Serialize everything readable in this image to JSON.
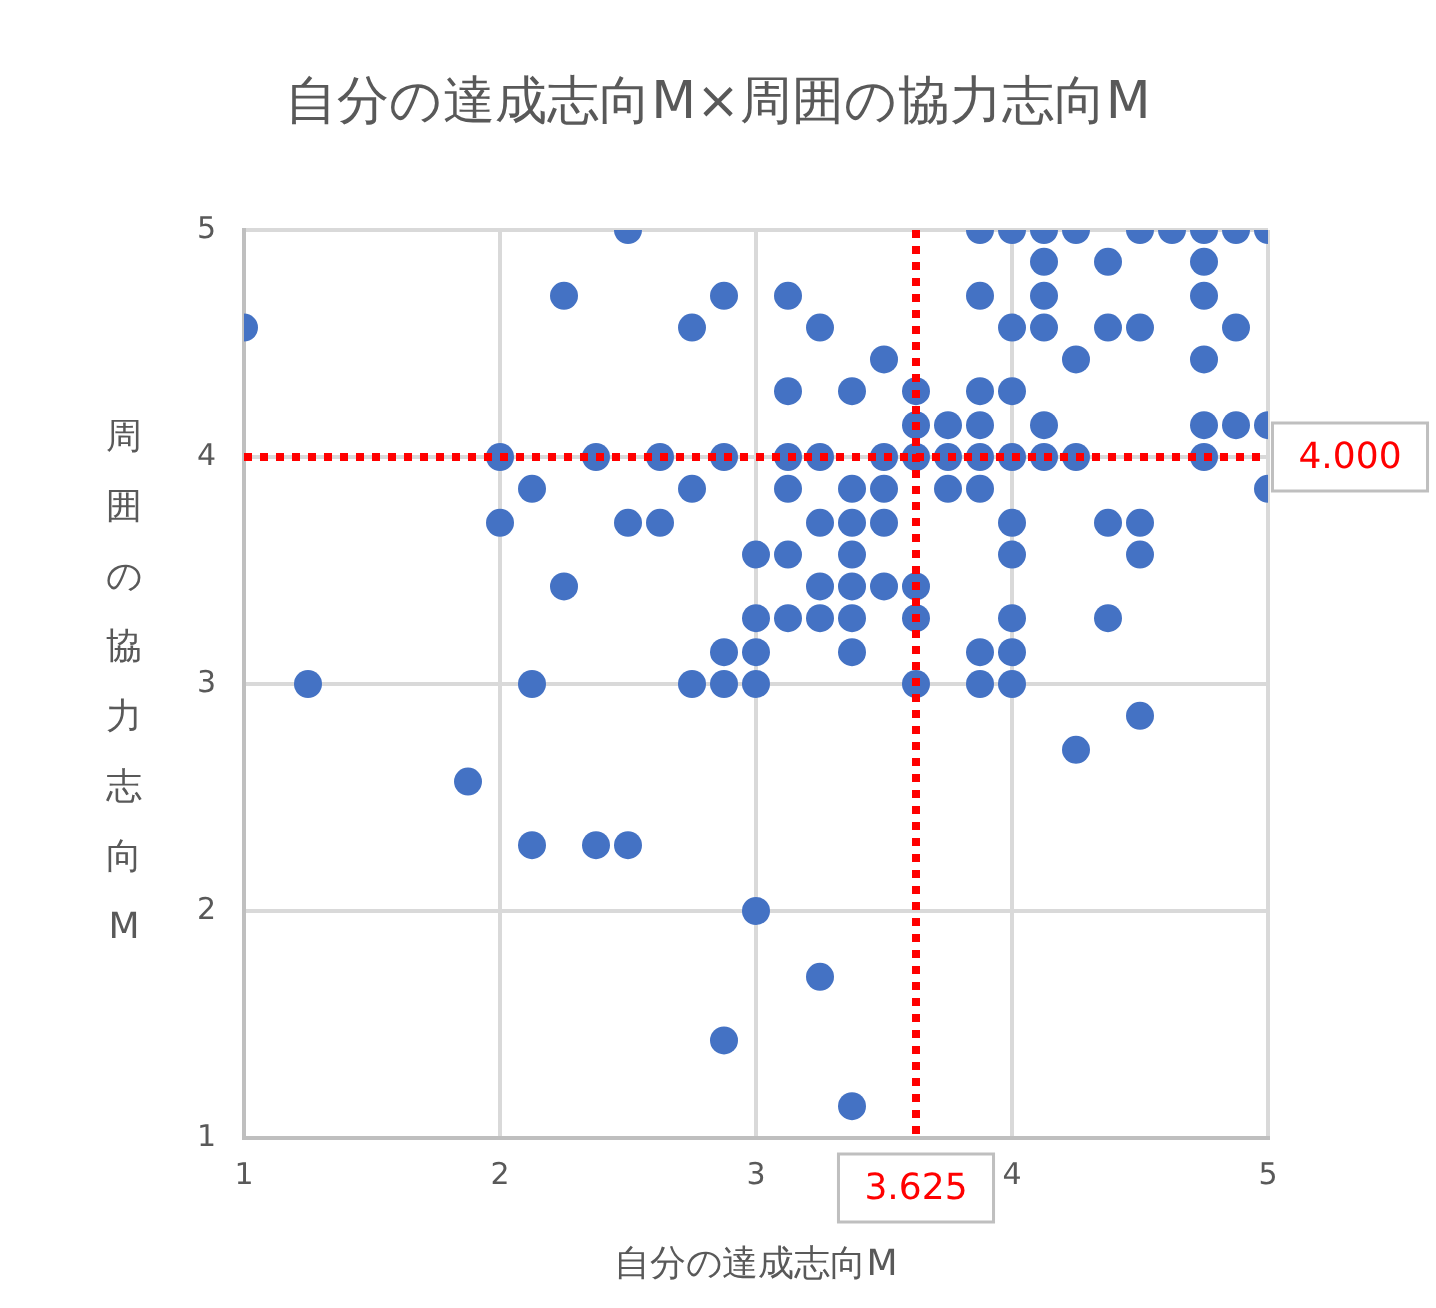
{
  "chart_data": {
    "type": "scatter",
    "title": "自分の達成志向M×周囲の協力志向M",
    "xlabel": "自分の達成志向M",
    "ylabel": "周囲の協力志向M",
    "xlim": [
      1,
      5
    ],
    "xticks": [
      1,
      2,
      3,
      4,
      5
    ],
    "ylim": [
      1,
      5
    ],
    "yticks": [
      1,
      2,
      3,
      4,
      5
    ],
    "grid": true,
    "legend": false,
    "marker": "circle",
    "series": [
      {
        "color": "#4472c4",
        "x": [
          1,
          1.25,
          1.875,
          2,
          2,
          2.125,
          2.125,
          2.125,
          2.25,
          2.25,
          2.375,
          2.375,
          2.5,
          2.5,
          2.5,
          2.625,
          2.625,
          2.75,
          2.75,
          2.75,
          2.875,
          2.875,
          2.875,
          2.875,
          2.875,
          3,
          3,
          3,
          3,
          3,
          3.25,
          3.375,
          4.25,
          4.5,
          3.875,
          4,
          4.125,
          4.25,
          4.5,
          4.625,
          4.75,
          4.875,
          5,
          4.125,
          4.375,
          4.75,
          3.125,
          3.875,
          4.125,
          4.75,
          3.25,
          4,
          4.125,
          4.375,
          4.5,
          4.875,
          3.5,
          4.25,
          4.75,
          3.125,
          3.375,
          3.625,
          3.875,
          4,
          3.625,
          3.75,
          3.875,
          4.125,
          4.75,
          4.875,
          5,
          3.125,
          3.25,
          3.5,
          3.625,
          3.75,
          3.875,
          4,
          4.125,
          4.25,
          4.75,
          3.125,
          3.375,
          3.5,
          3.75,
          3.875,
          5,
          3.25,
          3.375,
          3.5,
          4,
          4.375,
          4.5,
          3.125,
          3.375,
          4,
          4.5,
          3.25,
          3.375,
          3.5,
          3.625,
          3.125,
          3.25,
          3.375,
          3.625,
          4,
          4.375,
          3.375,
          3.875,
          4,
          3.625,
          3.875,
          4
        ],
        "values": [
          4.57,
          3,
          2.57,
          4,
          3.71,
          3.86,
          3,
          2.29,
          4.71,
          3.43,
          4,
          2.29,
          5,
          3.71,
          2.29,
          4,
          3.71,
          4.57,
          3.86,
          3,
          4.71,
          4,
          3.14,
          3,
          1.43,
          3.57,
          3.29,
          3.14,
          3,
          2,
          1.71,
          1.14,
          2.71,
          2.86,
          5,
          5,
          5,
          5,
          5,
          5,
          5,
          5,
          5,
          4.86,
          4.86,
          4.86,
          4.71,
          4.71,
          4.71,
          4.71,
          4.57,
          4.57,
          4.57,
          4.57,
          4.57,
          4.57,
          4.43,
          4.43,
          4.43,
          4.29,
          4.29,
          4.29,
          4.29,
          4.29,
          4.14,
          4.14,
          4.14,
          4.14,
          4.14,
          4.14,
          4.14,
          4,
          4,
          4,
          4,
          4,
          4,
          4,
          4,
          4,
          4,
          3.86,
          3.86,
          3.86,
          3.86,
          3.86,
          3.86,
          3.71,
          3.71,
          3.71,
          3.71,
          3.71,
          3.71,
          3.57,
          3.57,
          3.57,
          3.57,
          3.43,
          3.43,
          3.43,
          3.43,
          3.29,
          3.29,
          3.29,
          3.29,
          3.29,
          3.29,
          3.14,
          3.14,
          3.14,
          3,
          3,
          3
        ]
      }
    ],
    "ref_lines": [
      {
        "axis": "x",
        "value": 3.625,
        "label": "3.625",
        "color": "#ff0000",
        "line_style": "dotted"
      },
      {
        "axis": "y",
        "value": 4,
        "label": "4.000",
        "color": "#ff0000",
        "line_style": "dotted"
      }
    ]
  }
}
